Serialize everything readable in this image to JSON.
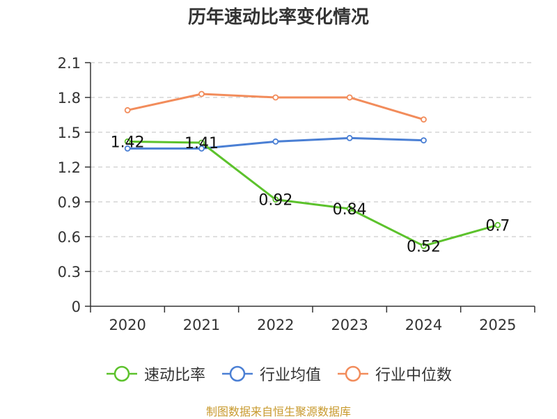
{
  "title": "历年速动比率变化情况",
  "source_note": "制图数据来自恒生聚源数据库",
  "colors": {
    "speed_ratio": "#5cc22c",
    "industry_mean": "#4a7fd4",
    "industry_median": "#f28c5b",
    "axis": "#333333",
    "grid": "#cccccc"
  },
  "chart_data": {
    "type": "line",
    "title": "历年速动比率变化情况",
    "categories": [
      "2020",
      "2021",
      "2022",
      "2023",
      "2024",
      "2025"
    ],
    "ylim": [
      0,
      2.1
    ],
    "yticks": [
      "0",
      "0.3",
      "0.6",
      "0.9",
      "1.2",
      "1.5",
      "1.8",
      "2.1"
    ],
    "grid": true,
    "legend_position": "bottom",
    "series": [
      {
        "name": "速动比率",
        "key": "speed_ratio",
        "values": [
          1.42,
          1.41,
          0.92,
          0.84,
          0.52,
          0.7
        ],
        "labels": [
          "1.42",
          "1.41",
          "0.92",
          "0.84",
          "0.52",
          "0.7"
        ],
        "show_labels": true
      },
      {
        "name": "行业均值",
        "key": "industry_mean",
        "values": [
          1.36,
          1.36,
          1.42,
          1.45,
          1.43,
          null
        ],
        "show_labels": false
      },
      {
        "name": "行业中位数",
        "key": "industry_median",
        "values": [
          1.69,
          1.83,
          1.8,
          1.8,
          1.61,
          null
        ],
        "show_labels": false
      }
    ]
  }
}
